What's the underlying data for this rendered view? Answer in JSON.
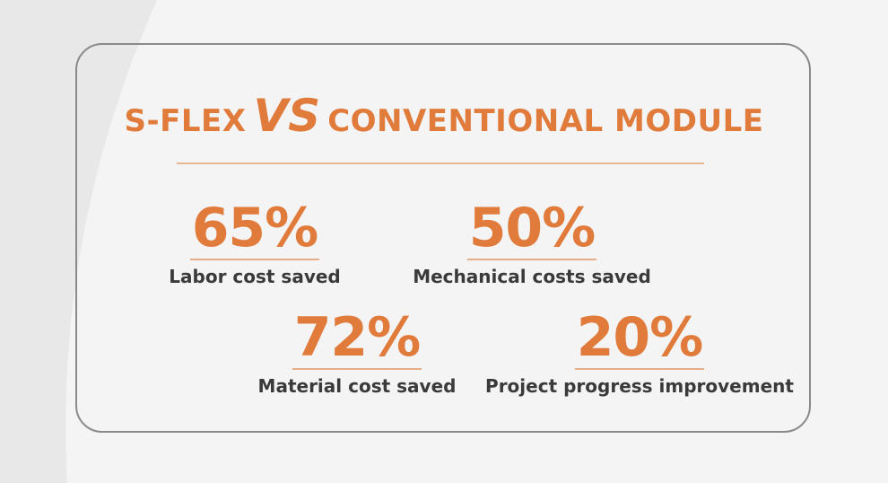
{
  "title": {
    "left": "S-FLEX",
    "middle": "VS",
    "right": "CONVENTIONAL MODULE"
  },
  "stats": [
    {
      "value": "65%",
      "label": "Labor cost saved"
    },
    {
      "value": "50%",
      "label": "Mechanical costs saved"
    },
    {
      "value": "72%",
      "label": "Material cost saved"
    },
    {
      "value": "20%",
      "label": "Project progress improvement"
    }
  ]
}
